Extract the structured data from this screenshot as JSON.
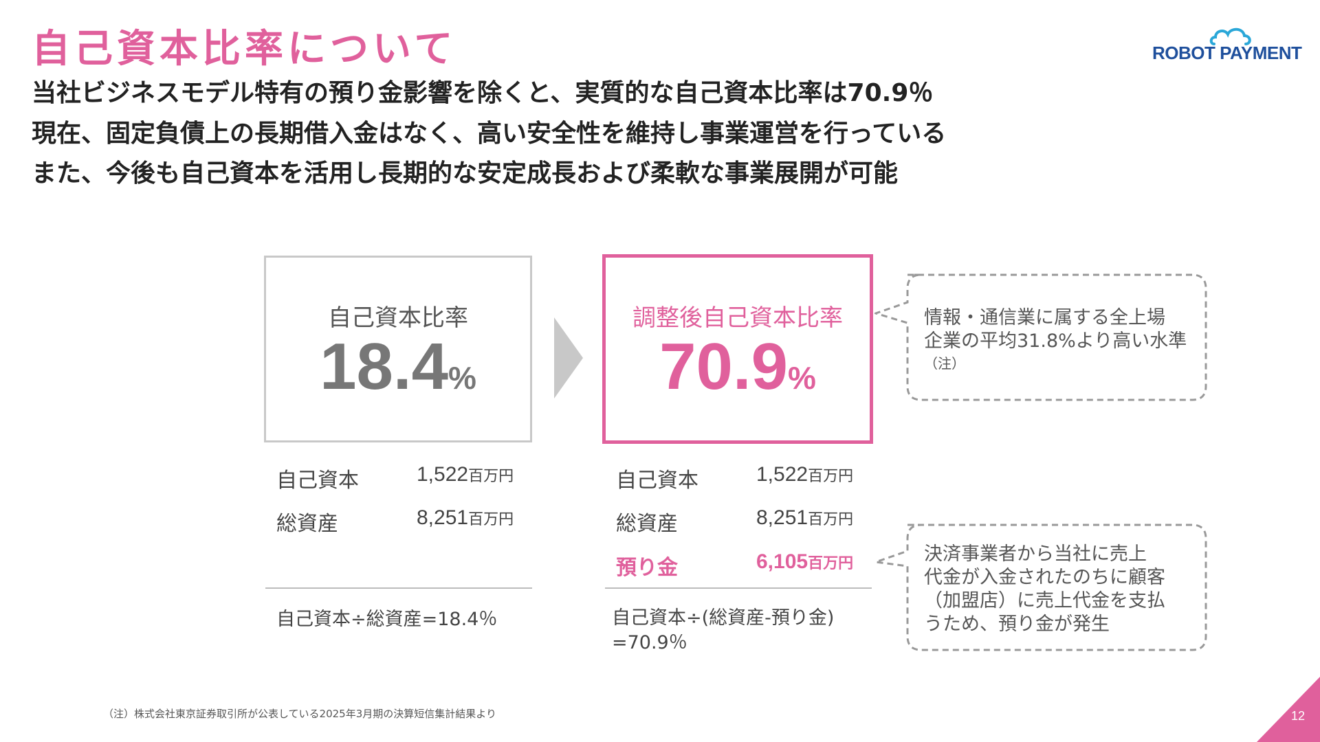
{
  "title": "自己資本比率について",
  "logo": {
    "text": "ROBOT PAYMENT",
    "accent": "#1e4f9c"
  },
  "subtitles": [
    "当社ビジネスモデル特有の預り金影響を除くと、実質的な自己資本比率は70.9％",
    "現在、固定負債上の長期借入金はなく、高い安全性を維持し事業運営を行っている",
    "また、今後も自己資本を活用し長期的な安定成長および柔軟な事業展開が可能"
  ],
  "left": {
    "label": "自己資本比率",
    "value": "18.4",
    "pct": "%",
    "rows": [
      {
        "label": "自己資本",
        "value": "1,522",
        "unit": "百万円"
      },
      {
        "label": "総資産",
        "value": "8,251",
        "unit": "百万円"
      }
    ],
    "formula": "自己資本÷総資産=18.4％"
  },
  "right": {
    "label": "調整後自己資本比率",
    "value": "70.9",
    "pct": "%",
    "rows": [
      {
        "label": "自己資本",
        "value": "1,522",
        "unit": "百万円"
      },
      {
        "label": "総資産",
        "value": "8,251",
        "unit": "百万円"
      },
      {
        "label": "預り金",
        "value": "6,105",
        "unit": "百万円"
      }
    ],
    "formula_line1": "自己資本÷(総資産-預り金)",
    "formula_line2": "=70.9％"
  },
  "callout_top": {
    "line1": "情報・通信業に属する全上場",
    "line2": "企業の平均31.8%より高い水準",
    "note": "（注）"
  },
  "callout_bottom": {
    "line1": "決済事業者から当社に売上",
    "line2": "代金が入金されたのちに顧客",
    "line3": "（加盟店）に売上代金を支払",
    "line4": "うため、預り金が発生"
  },
  "footnote": "（注）株式会社東京証券取引所が公表している2025年3月期の決算短信集計結果より",
  "page_number": "12",
  "colors": {
    "accent": "#e0609c",
    "gray": "#777777",
    "logo_blue": "#1e4f9c",
    "cloud_blue": "#2aa7d8"
  }
}
